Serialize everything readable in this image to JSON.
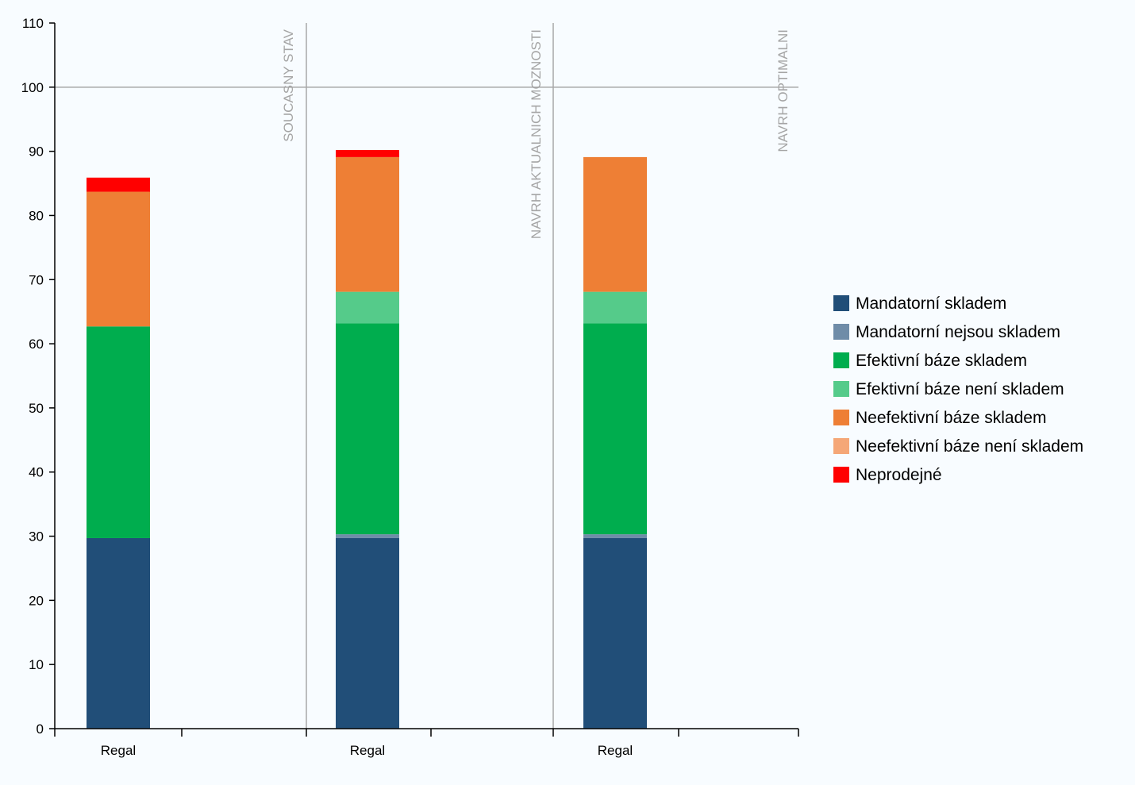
{
  "chart_data": {
    "type": "bar",
    "stacked": true,
    "categories": [
      "Regal",
      "Regal",
      "Regal"
    ],
    "group_labels": [
      "SOUCASNY STAV",
      "NAVRH AKTUALNICH MOZNOSTI",
      "NAVRH OPTIMALNI"
    ],
    "ylim": [
      0,
      110
    ],
    "yticks": [
      0,
      10,
      20,
      30,
      40,
      50,
      60,
      70,
      80,
      90,
      100,
      110
    ],
    "reference_line": 100,
    "legend_position": "right",
    "grid": false,
    "series": [
      {
        "name": "Mandatorní skladem",
        "color": "#214e78",
        "values": [
          29.7,
          29.7,
          29.7
        ]
      },
      {
        "name": "Mandatorní nejsou skladem",
        "color": "#6f8ca8",
        "values": [
          0.0,
          0.6,
          0.6
        ]
      },
      {
        "name": "Efektivní báze skladem",
        "color": "#00ad4e",
        "values": [
          33.0,
          32.9,
          32.9
        ]
      },
      {
        "name": "Efektivní báze není skladem",
        "color": "#55cb8a",
        "values": [
          0.0,
          4.9,
          4.9
        ]
      },
      {
        "name": "Neefektivní báze skladem",
        "color": "#ee7f35",
        "values": [
          21.0,
          21.0,
          21.0
        ]
      },
      {
        "name": "Neefektivní báze není skladem",
        "color": "#f5a777",
        "values": [
          0.0,
          0.0,
          0.0
        ]
      },
      {
        "name": "Neprodejné",
        "color": "#ff0000",
        "values": [
          2.2,
          1.1,
          0.0
        ]
      }
    ]
  }
}
